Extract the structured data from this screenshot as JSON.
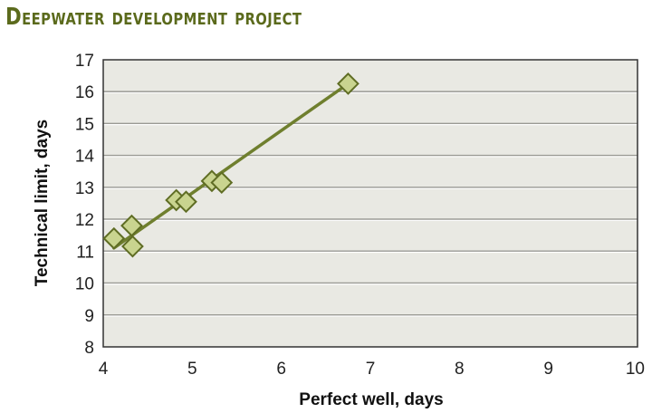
{
  "chart_data": {
    "type": "scatter",
    "title": "Deepwater development project",
    "xlabel": "Perfect well, days",
    "ylabel": "Technical limit, days",
    "xlim": [
      4,
      10
    ],
    "ylim": [
      8,
      17
    ],
    "xticks": [
      "4",
      "5",
      "6",
      "7",
      "8",
      "9",
      "10"
    ],
    "yticks": [
      "8",
      "9",
      "10",
      "11",
      "12",
      "13",
      "14",
      "15",
      "16",
      "17"
    ],
    "grid": "horizontal",
    "series": [
      {
        "points": [
          {
            "x": 4.12,
            "y": 11.4
          },
          {
            "x": 4.32,
            "y": 11.8
          },
          {
            "x": 4.33,
            "y": 11.15
          },
          {
            "x": 4.82,
            "y": 12.6
          },
          {
            "x": 4.93,
            "y": 12.55
          },
          {
            "x": 5.22,
            "y": 13.2
          },
          {
            "x": 5.33,
            "y": 13.15
          },
          {
            "x": 6.75,
            "y": 16.25
          }
        ]
      }
    ],
    "trendline": {
      "x1": 4.12,
      "y1": 11.1,
      "x2": 6.75,
      "y2": 16.25
    },
    "colors": {
      "title": "#5b6a1c",
      "plot_background": "#e9e9e3",
      "grid": "#ffffff",
      "marker_fill": "#c9d48f",
      "marker_stroke": "#5f6d24",
      "line": "#6f7f2e"
    }
  }
}
